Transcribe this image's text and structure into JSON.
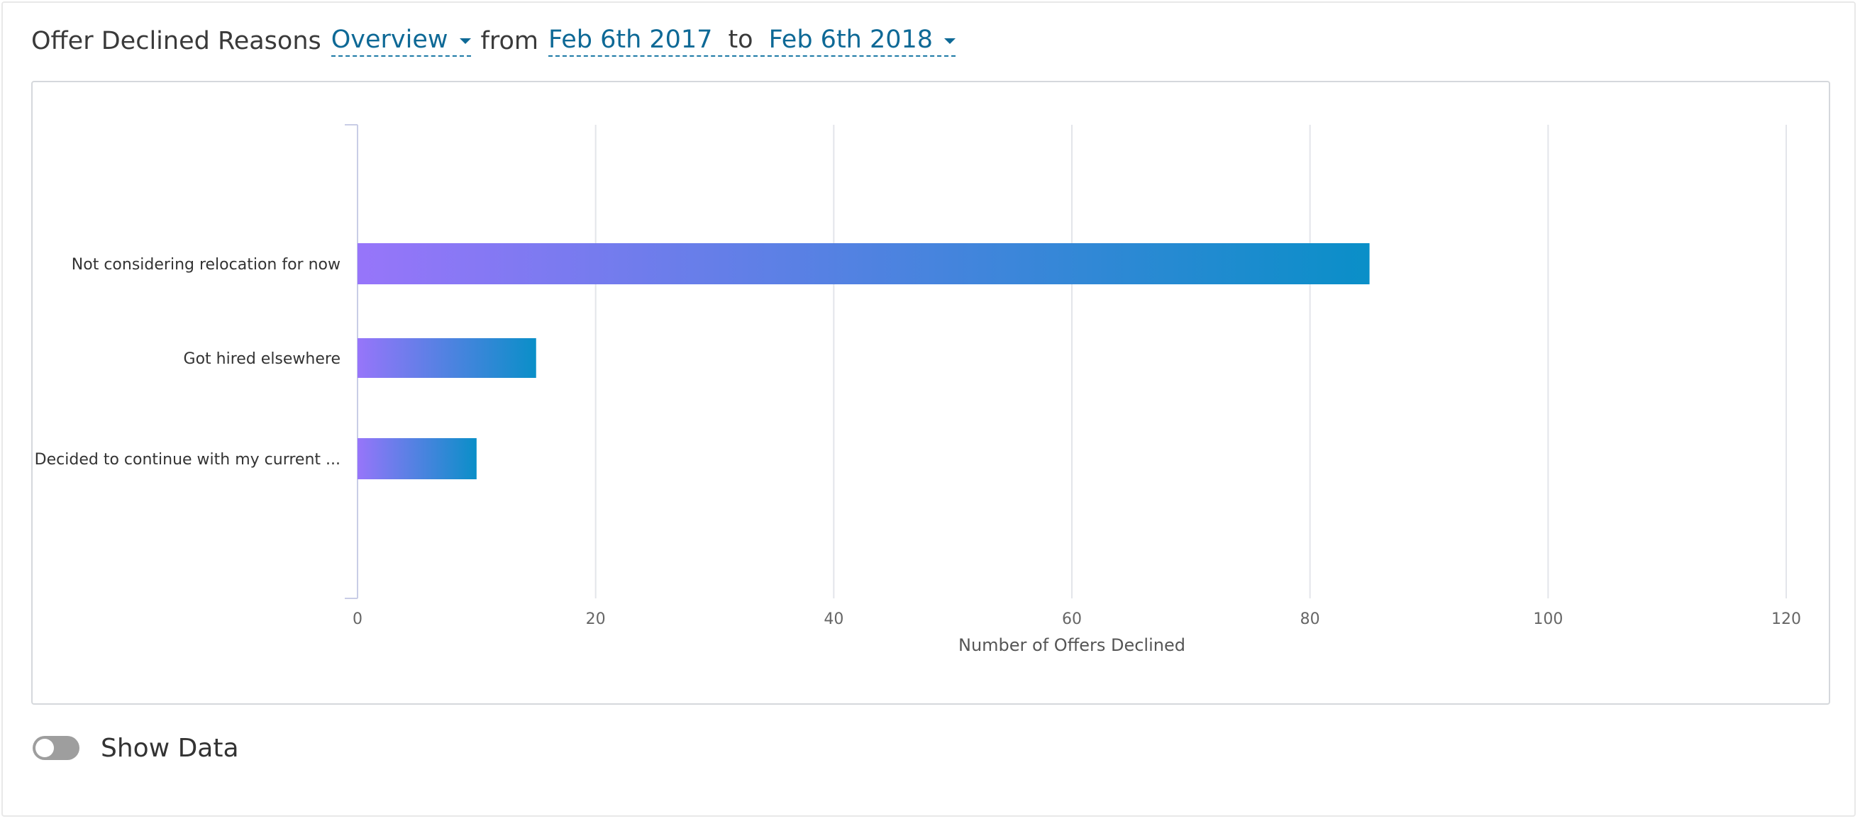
{
  "header": {
    "title": "Offer Declined Reasons",
    "view_selected": "Overview",
    "from_label": "from",
    "date_from": "Feb 6th 2017",
    "to_label": "to",
    "date_to": "Feb 6th 2018"
  },
  "toggle": {
    "label": "Show Data",
    "enabled": false
  },
  "colors": {
    "bar_start": "#9775fa",
    "bar_end": "#0a8fc8",
    "link": "#0e6996"
  },
  "chart_data": {
    "type": "bar",
    "orientation": "horizontal",
    "title": "",
    "xlabel": "Number of Offers Declined",
    "ylabel": "",
    "categories": [
      "Not considering relocation for now",
      "Got hired elsewhere",
      "Decided to continue with my current ..."
    ],
    "values": [
      85,
      15,
      10
    ],
    "xlim": [
      0,
      120
    ],
    "xticks": [
      "0",
      "20",
      "40",
      "60",
      "80",
      "100",
      "120"
    ],
    "grid": true,
    "legend": "none"
  }
}
